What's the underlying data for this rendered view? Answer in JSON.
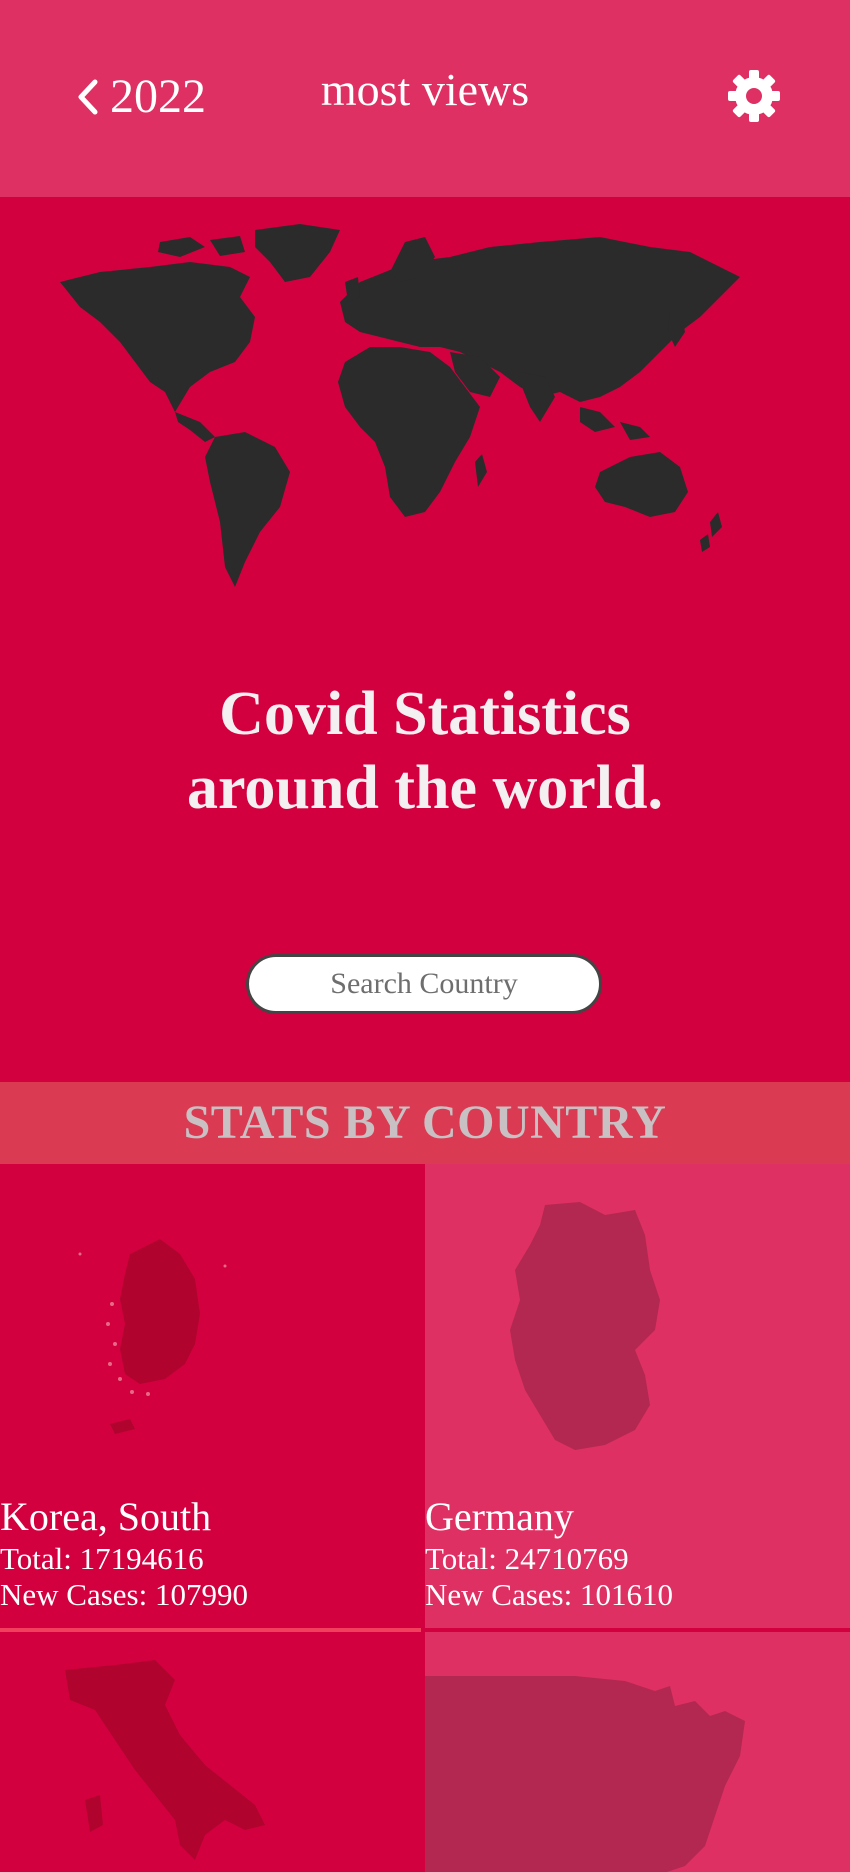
{
  "header": {
    "back_label": "2022",
    "title": "most views",
    "back_icon": "chevron-left-icon",
    "settings_icon": "gear-icon"
  },
  "hero": {
    "headline_line1": "Covid Statistics",
    "headline_line2": "around the world.",
    "search_placeholder": "Search Country",
    "map": "world-map-silhouette"
  },
  "section_title": "STATS BY COUNTRY",
  "countries": [
    {
      "name": "Korea, South",
      "total": "Total: 17194616",
      "new_cases": "New Cases: 107990"
    },
    {
      "name": "Germany",
      "total": "Total: 24710769",
      "new_cases": "New Cases: 101610"
    },
    {
      "name": "",
      "total": "",
      "new_cases": ""
    },
    {
      "name": "",
      "total": "",
      "new_cases": ""
    }
  ],
  "colors": {
    "header_bg": "#de3062",
    "hero_bg": "#d3003f",
    "section_bg": "#da3b52",
    "map_dark": "#2b2b2b"
  }
}
